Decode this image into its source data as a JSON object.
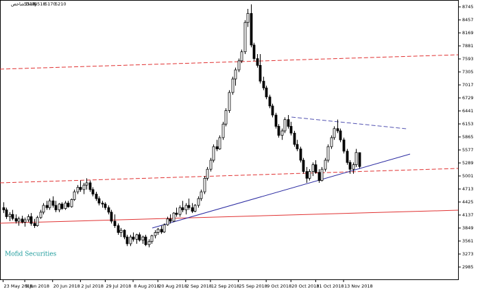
{
  "chart_data": {
    "type": "candlestick",
    "title": "شاخص,Daily",
    "watermark": "Mofid Securities",
    "up_color": "#ffffff",
    "down_color": "#000000",
    "edge_color": "#000000",
    "xlim": [
      -1,
      147
    ],
    "xticks": [
      {
        "value": 0,
        "label": "23 May 2018"
      },
      {
        "value": 7,
        "label": "9 Jun 2018"
      },
      {
        "value": 16,
        "label": "20 Jun 2018"
      },
      {
        "value": 25,
        "label": "2 Jul 2018"
      },
      {
        "value": 33,
        "label": "29 Jul 2018"
      },
      {
        "value": 42,
        "label": "8 Aug 2018"
      },
      {
        "value": 50,
        "label": "20 Aug 2018"
      },
      {
        "value": 59,
        "label": "2 Sep 2018"
      },
      {
        "value": 67,
        "label": "12 Sep 2018"
      },
      {
        "value": 76,
        "label": "25 Sep 2018"
      },
      {
        "value": 85,
        "label": "9 Oct 2018"
      },
      {
        "value": 93,
        "label": "20 Oct 2018"
      },
      {
        "value": 101,
        "label": "31 Oct 2018"
      },
      {
        "value": 110,
        "label": "13 Nov 2018"
      }
    ],
    "ylim": [
      2712,
      8897
    ],
    "yticks": [
      8745,
      8457,
      8169,
      7881,
      7593,
      7305,
      7017,
      6729,
      6441,
      6153,
      5865,
      5577,
      5289,
      5001,
      4713,
      4425,
      4137,
      3849,
      3561,
      3273,
      2985
    ],
    "candles": [
      [
        4300,
        4420,
        4180,
        4250
      ],
      [
        4250,
        4300,
        4050,
        4100
      ],
      [
        4100,
        4200,
        4000,
        4150
      ],
      [
        4150,
        4250,
        4020,
        4060
      ],
      [
        4060,
        4150,
        3950,
        4000
      ],
      [
        4000,
        4100,
        3900,
        4050
      ],
      [
        4050,
        4120,
        3950,
        3980
      ],
      [
        3980,
        4080,
        3880,
        4030
      ],
      [
        4030,
        4150,
        3980,
        4100
      ],
      [
        4100,
        4180,
        3900,
        3950
      ],
      [
        3950,
        4050,
        3850,
        3900
      ],
      [
        3900,
        4120,
        3880,
        4080
      ],
      [
        4080,
        4250,
        4050,
        4200
      ],
      [
        4200,
        4400,
        4150,
        4350
      ],
      [
        4350,
        4450,
        4250,
        4300
      ],
      [
        4300,
        4500,
        4250,
        4450
      ],
      [
        4450,
        4550,
        4300,
        4350
      ],
      [
        4350,
        4450,
        4200,
        4250
      ],
      [
        4250,
        4400,
        4200,
        4380
      ],
      [
        4380,
        4420,
        4250,
        4280
      ],
      [
        4280,
        4450,
        4250,
        4400
      ],
      [
        4400,
        4450,
        4300,
        4320
      ],
      [
        4320,
        4500,
        4300,
        4480
      ],
      [
        4480,
        4700,
        4450,
        4650
      ],
      [
        4650,
        4800,
        4600,
        4750
      ],
      [
        4750,
        4900,
        4650,
        4700
      ],
      [
        4700,
        4850,
        4600,
        4800
      ],
      [
        4800,
        4950,
        4700,
        4850
      ],
      [
        4850,
        4900,
        4650,
        4700
      ],
      [
        4700,
        4750,
        4550,
        4600
      ],
      [
        4600,
        4650,
        4450,
        4500
      ],
      [
        4500,
        4550,
        4350,
        4400
      ],
      [
        4400,
        4450,
        4300,
        4380
      ],
      [
        4380,
        4420,
        4250,
        4300
      ],
      [
        4300,
        4350,
        4150,
        4200
      ],
      [
        4200,
        4250,
        3950,
        4000
      ],
      [
        4000,
        4150,
        3850,
        3900
      ],
      [
        3900,
        3950,
        3700,
        3750
      ],
      [
        3750,
        3850,
        3650,
        3800
      ],
      [
        3800,
        3820,
        3600,
        3650
      ],
      [
        3650,
        3700,
        3450,
        3500
      ],
      [
        3500,
        3700,
        3450,
        3650
      ],
      [
        3650,
        3750,
        3550,
        3600
      ],
      [
        3600,
        3720,
        3500,
        3700
      ],
      [
        3700,
        3750,
        3550,
        3580
      ],
      [
        3580,
        3680,
        3500,
        3650
      ],
      [
        3650,
        3700,
        3450,
        3480
      ],
      [
        3480,
        3600,
        3420,
        3550
      ],
      [
        3550,
        3700,
        3500,
        3680
      ],
      [
        3680,
        3800,
        3620,
        3750
      ],
      [
        3750,
        3850,
        3700,
        3820
      ],
      [
        3820,
        3900,
        3720,
        3760
      ],
      [
        3760,
        3950,
        3740,
        3920
      ],
      [
        3920,
        4100,
        3900,
        4050
      ],
      [
        4050,
        4150,
        3950,
        4000
      ],
      [
        4000,
        4200,
        3980,
        4180
      ],
      [
        4180,
        4300,
        4100,
        4150
      ],
      [
        4150,
        4350,
        4100,
        4300
      ],
      [
        4300,
        4450,
        4200,
        4250
      ],
      [
        4250,
        4400,
        4150,
        4350
      ],
      [
        4350,
        4500,
        4250,
        4300
      ],
      [
        4300,
        4400,
        4180,
        4220
      ],
      [
        4220,
        4380,
        4200,
        4350
      ],
      [
        4350,
        4550,
        4300,
        4500
      ],
      [
        4500,
        4700,
        4450,
        4650
      ],
      [
        4650,
        5000,
        4600,
        4950
      ],
      [
        4950,
        5200,
        4900,
        5150
      ],
      [
        5150,
        5400,
        5100,
        5350
      ],
      [
        5350,
        5700,
        5300,
        5650
      ],
      [
        5650,
        5800,
        5550,
        5600
      ],
      [
        5600,
        5900,
        5580,
        5850
      ],
      [
        5850,
        6200,
        5800,
        6150
      ],
      [
        6150,
        6500,
        6100,
        6450
      ],
      [
        6450,
        6900,
        6400,
        6850
      ],
      [
        6850,
        7200,
        6800,
        7150
      ],
      [
        7150,
        7400,
        7000,
        7350
      ],
      [
        7350,
        7600,
        7300,
        7550
      ],
      [
        7550,
        7800,
        7500,
        7750
      ],
      [
        7750,
        8450,
        7700,
        8400
      ],
      [
        8400,
        8700,
        8300,
        8600
      ],
      [
        8600,
        8800,
        7850,
        7900
      ],
      [
        7900,
        7950,
        7550,
        7600
      ],
      [
        7600,
        7700,
        7400,
        7450
      ],
      [
        7450,
        7700,
        7050,
        7100
      ],
      [
        7100,
        7200,
        6900,
        6950
      ],
      [
        6950,
        7000,
        6700,
        6750
      ],
      [
        6750,
        6800,
        6500,
        6550
      ],
      [
        6550,
        6600,
        6300,
        6350
      ],
      [
        6350,
        6400,
        6050,
        6100
      ],
      [
        6100,
        6150,
        5850,
        5900
      ],
      [
        5900,
        6050,
        5800,
        6000
      ],
      [
        6000,
        6300,
        5950,
        6250
      ],
      [
        6250,
        6350,
        6050,
        6100
      ],
      [
        6100,
        6200,
        5900,
        5950
      ],
      [
        5950,
        6000,
        5650,
        5700
      ],
      [
        5700,
        5800,
        5550,
        5600
      ],
      [
        5600,
        5650,
        5300,
        5350
      ],
      [
        5350,
        5400,
        5050,
        5100
      ],
      [
        5100,
        5200,
        4850,
        4950
      ],
      [
        4950,
        5150,
        4900,
        5100
      ],
      [
        5100,
        5300,
        5000,
        5250
      ],
      [
        5250,
        5350,
        5050,
        5080
      ],
      [
        5080,
        5150,
        4850,
        4900
      ],
      [
        4900,
        5200,
        4880,
        5150
      ],
      [
        5150,
        5400,
        5100,
        5350
      ],
      [
        5350,
        5700,
        5300,
        5650
      ],
      [
        5650,
        5900,
        5600,
        5850
      ],
      [
        5850,
        6100,
        5800,
        6050
      ],
      [
        6050,
        6250,
        5950,
        6000
      ],
      [
        6000,
        6050,
        5750,
        5800
      ],
      [
        5800,
        5850,
        5500,
        5550
      ],
      [
        5550,
        5600,
        5250,
        5300
      ],
      [
        5300,
        5350,
        5050,
        5150
      ],
      [
        5150,
        5300,
        5050,
        5250
      ],
      [
        5250,
        5600,
        5200,
        5520
      ],
      [
        5518,
        5518,
        5170,
        5210
      ]
    ],
    "lines": [
      {
        "color": "#e03030",
        "style": "dashed",
        "x": [
          -1,
          147
        ],
        "y": [
          7366,
          7684
        ]
      },
      {
        "color": "#e03030",
        "style": "dashed",
        "x": [
          -1,
          147
        ],
        "y": [
          4849,
          5168
        ]
      },
      {
        "color": "#e03030",
        "style": "solid",
        "x": [
          -1,
          147
        ],
        "y": [
          3955,
          4243
        ]
      },
      {
        "color": "#2828a0",
        "style": "solid",
        "x": [
          48.2,
          131.5
        ],
        "y": [
          3849,
          5486
        ]
      },
      {
        "color": "#5050b0",
        "style": "dashed",
        "x": [
          93.2,
          130.2
        ],
        "y": [
          6305,
          6047
        ]
      }
    ]
  }
}
